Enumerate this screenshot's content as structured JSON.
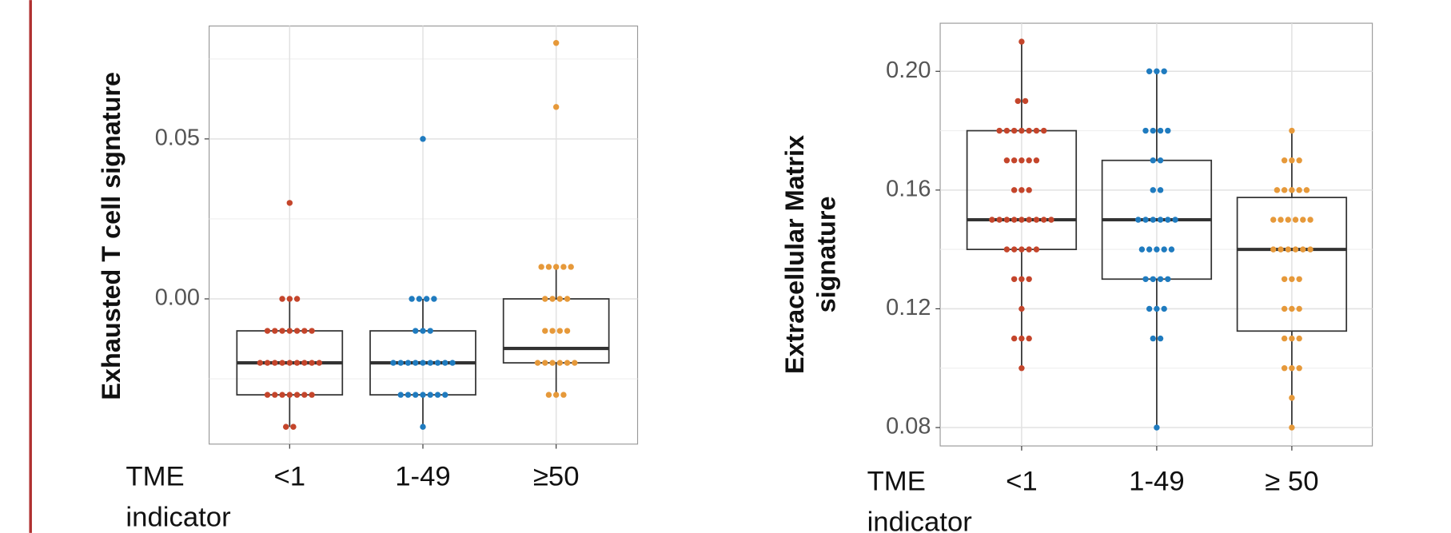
{
  "chart_data": [
    {
      "type": "box",
      "ylabel": [
        "Exhausted T cell signature"
      ],
      "xlabel": [
        "TME",
        "indicator"
      ],
      "categories": [
        "<1",
        "1-49",
        "≥50"
      ],
      "colors": [
        "#c4452b",
        "#1f7bbf",
        "#e6993a"
      ],
      "ylim": [
        -0.0454,
        0.0853
      ],
      "yticks": [
        {
          "value": 0,
          "label": "0.00"
        },
        {
          "value": 0.05,
          "label": "0.05"
        }
      ],
      "minor_yticks": [
        -0.025,
        0.025,
        0.075
      ],
      "grid": true,
      "boxes": [
        {
          "whisker_low": -0.04,
          "q1": -0.03,
          "median": -0.02,
          "q3": -0.01,
          "whisker_high": 0.0
        },
        {
          "whisker_low": -0.04,
          "q1": -0.03,
          "median": -0.02,
          "q3": -0.01,
          "whisker_high": 0.0
        },
        {
          "whisker_low": -0.03,
          "q1": -0.02,
          "median": -0.0155,
          "q3": 0.0,
          "whisker_high": 0.01
        }
      ],
      "points": [
        [
          0.03,
          0,
          0,
          0,
          -0.01,
          -0.01,
          -0.01,
          -0.01,
          -0.01,
          -0.01,
          -0.01,
          -0.02,
          -0.02,
          -0.02,
          -0.02,
          -0.02,
          -0.02,
          -0.02,
          -0.02,
          -0.02,
          -0.03,
          -0.03,
          -0.03,
          -0.03,
          -0.03,
          -0.03,
          -0.03,
          -0.04,
          -0.04
        ],
        [
          0.05,
          0,
          0,
          0,
          0,
          -0.01,
          -0.01,
          -0.01,
          -0.02,
          -0.02,
          -0.02,
          -0.02,
          -0.02,
          -0.02,
          -0.02,
          -0.02,
          -0.02,
          -0.03,
          -0.03,
          -0.03,
          -0.03,
          -0.03,
          -0.03,
          -0.03,
          -0.04
        ],
        [
          0.08,
          0.06,
          0.01,
          0.01,
          0.01,
          0.01,
          0.01,
          0,
          0,
          0,
          0,
          -0.01,
          -0.01,
          -0.01,
          -0.01,
          -0.02,
          -0.02,
          -0.02,
          -0.02,
          -0.02,
          -0.02,
          -0.03,
          -0.03,
          -0.03
        ]
      ]
    },
    {
      "type": "box",
      "ylabel": [
        "Extracellular Matrix",
        "signature"
      ],
      "xlabel": [
        "TME",
        "indicator"
      ],
      "categories": [
        "<1",
        "1-49",
        "≥ 50"
      ],
      "colors": [
        "#c4452b",
        "#1f7bbf",
        "#e6993a"
      ],
      "ylim": [
        0.0738,
        0.2162
      ],
      "yticks": [
        0.08,
        0.12,
        0.16,
        {
          "value": 0.2,
          "label": "0.20"
        }
      ],
      "minor_yticks": [
        0.1,
        0.14,
        0.18
      ],
      "grid": true,
      "boxes": [
        {
          "whisker_low": 0.1,
          "q1": 0.14,
          "median": 0.15,
          "q3": 0.18,
          "whisker_high": 0.21
        },
        {
          "whisker_low": 0.08,
          "q1": 0.13,
          "median": 0.15,
          "q3": 0.17,
          "whisker_high": 0.2
        },
        {
          "whisker_low": 0.08,
          "q1": 0.1125,
          "median": 0.14,
          "q3": 0.1575,
          "whisker_high": 0.18
        }
      ],
      "points": [
        [
          0.21,
          0.19,
          0.19,
          0.18,
          0.18,
          0.18,
          0.18,
          0.18,
          0.18,
          0.18,
          0.17,
          0.17,
          0.17,
          0.17,
          0.17,
          0.16,
          0.16,
          0.16,
          0.15,
          0.15,
          0.15,
          0.15,
          0.15,
          0.15,
          0.15,
          0.15,
          0.15,
          0.14,
          0.14,
          0.14,
          0.14,
          0.14,
          0.13,
          0.13,
          0.13,
          0.12,
          0.11,
          0.11,
          0.11,
          0.1
        ],
        [
          0.2,
          0.2,
          0.2,
          0.18,
          0.18,
          0.18,
          0.18,
          0.17,
          0.17,
          0.16,
          0.16,
          0.15,
          0.15,
          0.15,
          0.15,
          0.15,
          0.15,
          0.14,
          0.14,
          0.14,
          0.14,
          0.14,
          0.13,
          0.13,
          0.13,
          0.13,
          0.12,
          0.12,
          0.12,
          0.11,
          0.11,
          0.08
        ],
        [
          0.18,
          0.17,
          0.17,
          0.17,
          0.16,
          0.16,
          0.16,
          0.16,
          0.16,
          0.15,
          0.15,
          0.15,
          0.15,
          0.15,
          0.15,
          0.14,
          0.14,
          0.14,
          0.14,
          0.14,
          0.14,
          0.13,
          0.13,
          0.13,
          0.12,
          0.12,
          0.12,
          0.11,
          0.11,
          0.11,
          0.1,
          0.1,
          0.1,
          0.09,
          0.08
        ]
      ]
    }
  ]
}
